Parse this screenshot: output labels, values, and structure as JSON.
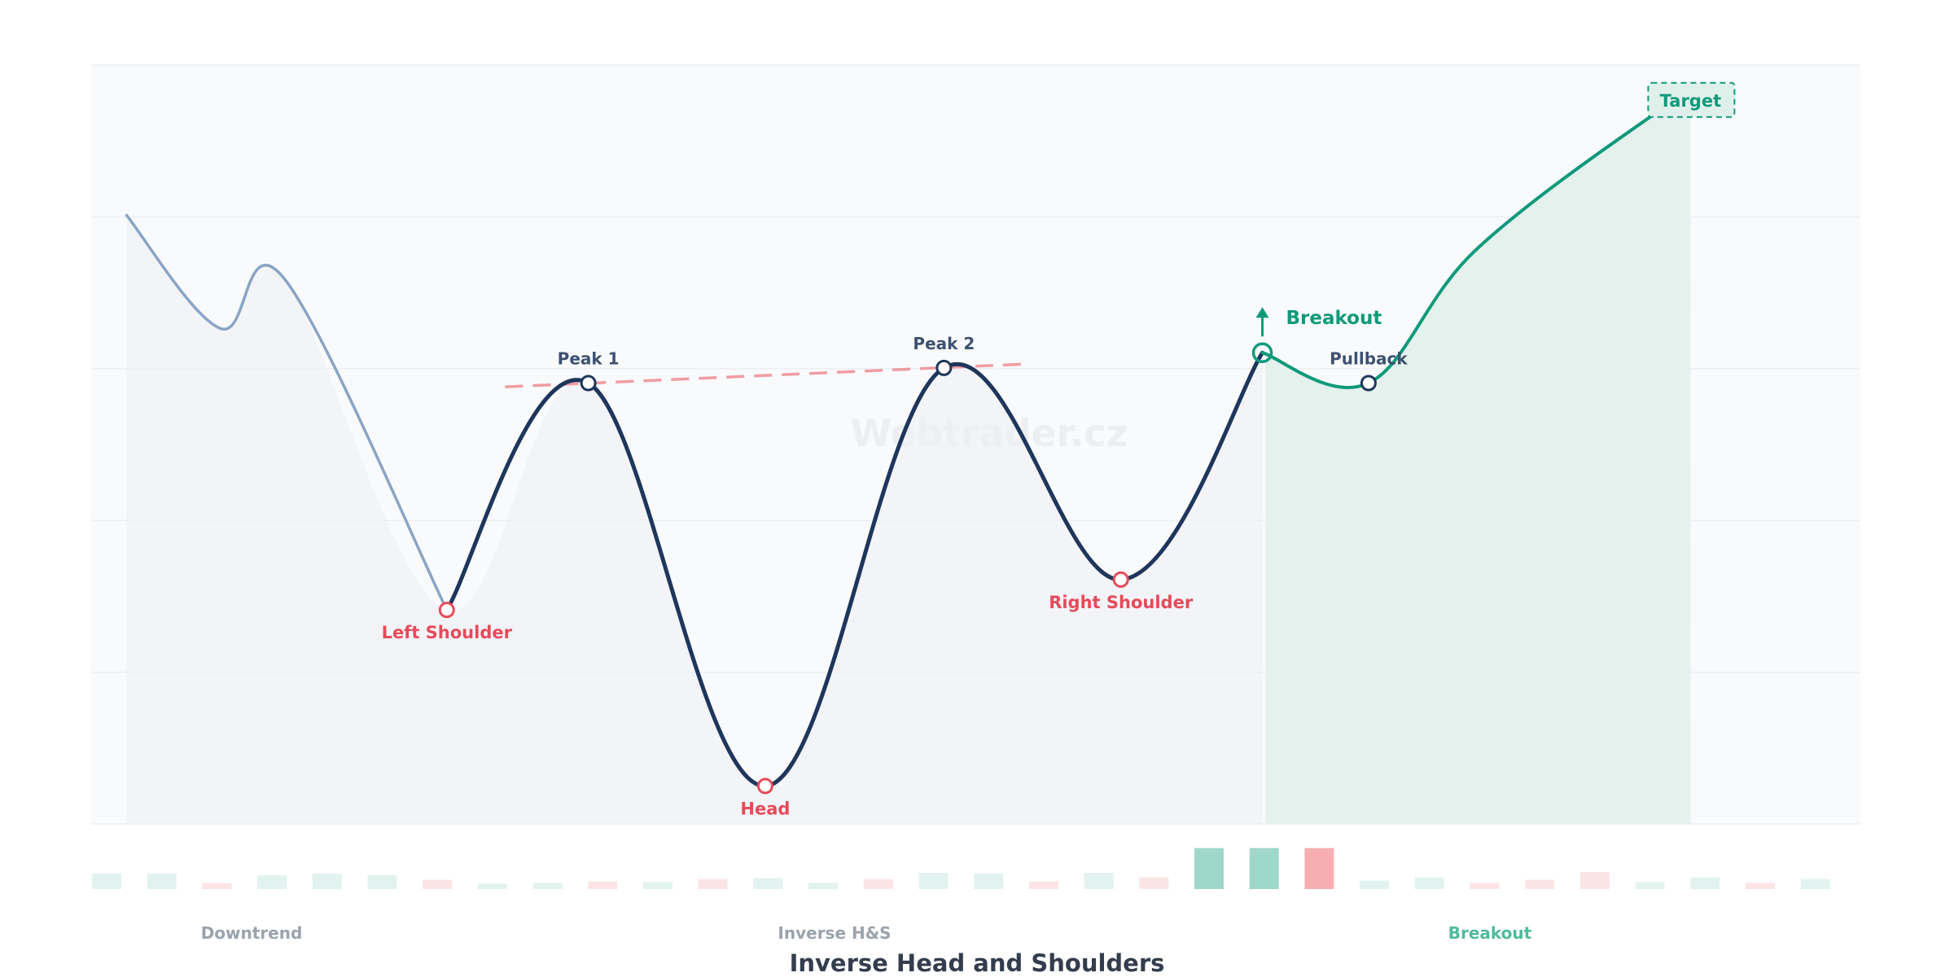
{
  "chart_data": {
    "type": "line",
    "title": "Inverse Head and Shoulders",
    "watermark": "Webtrader.cz",
    "xlabel": "",
    "ylabel": "",
    "xlim": [
      0,
      100
    ],
    "ylim": [
      0,
      100
    ],
    "grid": true,
    "legend": "none",
    "phases": [
      "Downtrend",
      "Inverse H&S",
      "Breakout"
    ],
    "series": [
      {
        "segment": "downtrend",
        "color": "#8aa4c4",
        "x": [
          2,
          7.3,
          10.9,
          20.1
        ],
        "y": [
          80.2,
          65.3,
          71.9,
          28.2
        ]
      },
      {
        "segment": "pattern",
        "color": "#1f365c",
        "x": [
          20.1,
          28.1,
          38.1,
          48.2,
          58.2,
          66.2
        ],
        "y": [
          28.2,
          58.1,
          5.0,
          60.1,
          32.2,
          62.1
        ]
      },
      {
        "segment": "breakout",
        "color": "#0e9a7b",
        "x": [
          66.2,
          72.2,
          78.2,
          88.2,
          90.4
        ],
        "y": [
          62.1,
          58.1,
          75.5,
          93.3,
          95.3
        ]
      }
    ],
    "points": [
      {
        "label": "Left Shoulder",
        "x": 20.1,
        "y": 28.2,
        "kind": "trough",
        "color": "#e64b5a"
      },
      {
        "label": "Peak 1",
        "x": 28.1,
        "y": 58.1,
        "kind": "peak",
        "color": "#1f365c"
      },
      {
        "label": "Head",
        "x": 38.1,
        "y": 5.0,
        "kind": "trough",
        "color": "#e64b5a"
      },
      {
        "label": "Peak 2",
        "x": 48.2,
        "y": 60.1,
        "kind": "peak",
        "color": "#1f365c"
      },
      {
        "label": "Right Shoulder",
        "x": 58.2,
        "y": 32.2,
        "kind": "trough",
        "color": "#e64b5a"
      },
      {
        "label": "Breakout",
        "x": 66.2,
        "y": 62.1,
        "kind": "breakout",
        "color": "#0e9a7b"
      },
      {
        "label": "Pullback",
        "x": 72.2,
        "y": 58.1,
        "kind": "peak",
        "color": "#1f365c"
      },
      {
        "label": "Target",
        "x": 90.4,
        "y": 95.3,
        "kind": "target",
        "color": "#0e9a7b"
      }
    ],
    "neckline": {
      "x": [
        23.4,
        52.7
      ],
      "y": [
        57.6,
        60.6
      ],
      "color": "#f09ca3"
    },
    "volume": {
      "values": [
        2,
        2,
        0.8,
        1.8,
        2,
        1.8,
        1.2,
        0.7,
        0.8,
        1,
        0.9,
        1.3,
        1.4,
        0.8,
        1.3,
        2.1,
        2,
        1,
        2.1,
        1.5,
        5.3,
        5.3,
        5.3,
        1.1,
        1.5,
        0.8,
        1.2,
        2.2,
        0.9,
        1.5,
        0.8,
        1.3
      ],
      "direction": [
        "up",
        "up",
        "down",
        "up",
        "up",
        "up",
        "down",
        "up",
        "up",
        "down",
        "up",
        "down",
        "up",
        "up",
        "down",
        "up",
        "up",
        "down",
        "up",
        "down",
        "up",
        "up",
        "down",
        "up",
        "up",
        "down",
        "down",
        "down",
        "up",
        "up",
        "down",
        "up"
      ],
      "highlight": [
        20,
        21,
        22
      ]
    },
    "colors": {
      "up": "#0e9a7b",
      "down": "#f6a5ab",
      "breakout_zone": "#e4f1ed",
      "label_dark": "#3d5170",
      "label_red": "#e64b5a",
      "phase_grey": "#9aa3ad",
      "phase_green": "#4fbb9c",
      "title": "#333d4d"
    }
  }
}
